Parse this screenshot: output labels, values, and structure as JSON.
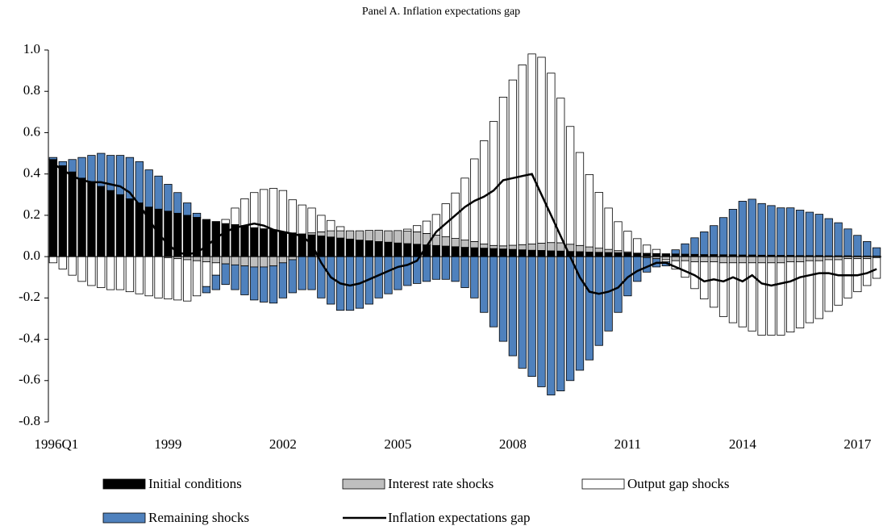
{
  "chart_data": {
    "type": "bar",
    "stacked": true,
    "title": "Panel A. Inflation expectations gap",
    "categories": [
      "1996Q1",
      null,
      null,
      null,
      null,
      null,
      null,
      null,
      null,
      null,
      null,
      null,
      "1999",
      null,
      null,
      null,
      null,
      null,
      null,
      null,
      null,
      null,
      null,
      null,
      "2002",
      null,
      null,
      null,
      null,
      null,
      null,
      null,
      null,
      null,
      null,
      null,
      "2005",
      null,
      null,
      null,
      null,
      null,
      null,
      null,
      null,
      null,
      null,
      null,
      "2008",
      null,
      null,
      null,
      null,
      null,
      null,
      null,
      null,
      null,
      null,
      null,
      "2011",
      null,
      null,
      null,
      null,
      null,
      null,
      null,
      null,
      null,
      null,
      null,
      "2014",
      null,
      null,
      null,
      null,
      null,
      null,
      null,
      null,
      null,
      null,
      null,
      "2017",
      null,
      null
    ],
    "ylim": [
      -0.8,
      1.0
    ],
    "yticks": [
      -0.8,
      -0.6,
      -0.4,
      -0.2,
      {
        "value": 0,
        "label": "0.0"
      },
      0.2,
      0.4,
      0.6,
      0.8,
      {
        "value": 1,
        "label": "1.0"
      }
    ],
    "series": [
      {
        "name": "Initial conditions",
        "color": "#000000",
        "values": [
          0.47,
          0.44,
          0.41,
          0.38,
          0.36,
          0.34,
          0.32,
          0.3,
          0.28,
          0.26,
          0.24,
          0.23,
          0.22,
          0.21,
          0.2,
          0.19,
          0.18,
          0.17,
          0.16,
          0.155,
          0.15,
          0.14,
          0.135,
          0.13,
          0.12,
          0.115,
          0.11,
          0.105,
          0.1,
          0.095,
          0.09,
          0.085,
          0.08,
          0.077,
          0.073,
          0.07,
          0.066,
          0.063,
          0.06,
          0.057,
          0.054,
          0.051,
          0.048,
          0.045,
          0.043,
          0.041,
          0.039,
          0.037,
          0.035,
          0.033,
          0.031,
          0.03,
          0.028,
          0.027,
          0.025,
          0.024,
          0.022,
          0.021,
          0.02,
          0.019,
          0.018,
          0.017,
          0.016,
          0.015,
          0.014,
          0.013,
          0.012,
          0.011,
          0.01,
          0.01,
          0.009,
          0.009,
          0.008,
          0.008,
          0.007,
          0.007,
          0.006,
          0.006,
          0.005,
          0.005,
          0.005,
          0.004,
          0.004,
          0.004,
          0.003,
          0.003,
          0.003
        ]
      },
      {
        "name": "Interest rate shocks",
        "color": "#bfbfbf",
        "values": [
          0,
          0,
          0,
          0,
          0,
          0,
          0,
          0,
          0,
          0,
          0,
          0,
          -0.005,
          -0.01,
          -0.015,
          -0.02,
          -0.025,
          -0.03,
          -0.035,
          -0.04,
          -0.045,
          -0.05,
          -0.05,
          -0.045,
          -0.03,
          -0.015,
          0,
          0.01,
          0.02,
          0.03,
          0.035,
          0.04,
          0.045,
          0.05,
          0.055,
          0.055,
          0.06,
          0.06,
          0.06,
          0.055,
          0.05,
          0.045,
          0.04,
          0.035,
          0.03,
          0.02,
          0.015,
          0.015,
          0.02,
          0.025,
          0.03,
          0.035,
          0.04,
          0.04,
          0.035,
          0.03,
          0.025,
          0.02,
          0.015,
          0.01,
          0.005,
          0,
          -0.005,
          -0.01,
          -0.015,
          -0.02,
          -0.02,
          -0.025,
          -0.025,
          -0.025,
          -0.03,
          -0.03,
          -0.03,
          -0.03,
          -0.03,
          -0.03,
          -0.03,
          -0.025,
          -0.025,
          -0.02,
          -0.02,
          -0.015,
          -0.015,
          -0.01,
          -0.01,
          -0.01,
          -0.005
        ]
      },
      {
        "name": "Output gap shocks",
        "color": "#ffffff",
        "values": [
          -0.03,
          -0.06,
          -0.09,
          -0.12,
          -0.14,
          -0.15,
          -0.16,
          -0.16,
          -0.17,
          -0.18,
          -0.19,
          -0.2,
          -0.2,
          -0.2,
          -0.2,
          -0.17,
          -0.12,
          -0.06,
          0.02,
          0.08,
          0.13,
          0.17,
          0.19,
          0.2,
          0.2,
          0.16,
          0.14,
          0.12,
          0.08,
          0.05,
          0.02,
          0,
          0,
          0,
          0,
          0,
          0,
          0.01,
          0.03,
          0.06,
          0.1,
          0.16,
          0.22,
          0.3,
          0.4,
          0.5,
          0.6,
          0.72,
          0.8,
          0.87,
          0.92,
          0.9,
          0.82,
          0.7,
          0.57,
          0.45,
          0.35,
          0.27,
          0.2,
          0.14,
          0.1,
          0.07,
          0.04,
          0.02,
          -0.01,
          -0.04,
          -0.08,
          -0.13,
          -0.18,
          -0.22,
          -0.26,
          -0.29,
          -0.31,
          -0.33,
          -0.35,
          -0.35,
          -0.35,
          -0.34,
          -0.32,
          -0.3,
          -0.28,
          -0.25,
          -0.22,
          -0.19,
          -0.16,
          -0.13,
          -0.1
        ]
      },
      {
        "name": "Remaining shocks",
        "color": "#4f81bd",
        "values": [
          0.01,
          0.02,
          0.06,
          0.1,
          0.13,
          0.16,
          0.17,
          0.19,
          0.2,
          0.2,
          0.18,
          0.16,
          0.13,
          0.1,
          0.06,
          0.02,
          -0.03,
          -0.07,
          -0.1,
          -0.12,
          -0.14,
          -0.16,
          -0.17,
          -0.18,
          -0.17,
          -0.16,
          -0.16,
          -0.16,
          -0.2,
          -0.23,
          -0.26,
          -0.26,
          -0.25,
          -0.23,
          -0.2,
          -0.18,
          -0.16,
          -0.14,
          -0.13,
          -0.12,
          -0.11,
          -0.11,
          -0.12,
          -0.15,
          -0.2,
          -0.27,
          -0.34,
          -0.41,
          -0.48,
          -0.54,
          -0.58,
          -0.63,
          -0.67,
          -0.65,
          -0.6,
          -0.55,
          -0.5,
          -0.43,
          -0.36,
          -0.27,
          -0.19,
          -0.12,
          -0.07,
          -0.04,
          -0.02,
          0.02,
          0.05,
          0.08,
          0.11,
          0.14,
          0.18,
          0.22,
          0.26,
          0.27,
          0.25,
          0.24,
          0.23,
          0.23,
          0.22,
          0.21,
          0.2,
          0.18,
          0.16,
          0.13,
          0.1,
          0.07,
          0.04
        ]
      },
      {
        "name": "Inflation expectations gap",
        "type": "line",
        "color": "#000000",
        "values": [
          0.45,
          0.42,
          0.39,
          0.37,
          0.36,
          0.36,
          0.35,
          0.34,
          0.31,
          0.25,
          0.18,
          0.11,
          0.06,
          0.02,
          0.01,
          0.02,
          0.05,
          0.09,
          0.12,
          0.14,
          0.15,
          0.16,
          0.15,
          0.13,
          0.12,
          0.11,
          0.1,
          0.06,
          -0.03,
          -0.1,
          -0.13,
          -0.14,
          -0.13,
          -0.11,
          -0.09,
          -0.07,
          -0.05,
          -0.04,
          -0.02,
          0.05,
          0.12,
          0.16,
          0.2,
          0.24,
          0.27,
          0.29,
          0.32,
          0.37,
          0.38,
          0.39,
          0.4,
          0.3,
          0.2,
          0.1,
          0.0,
          -0.1,
          -0.17,
          -0.18,
          -0.17,
          -0.15,
          -0.1,
          -0.07,
          -0.05,
          -0.03,
          -0.03,
          -0.05,
          -0.07,
          -0.09,
          -0.12,
          -0.11,
          -0.12,
          -0.1,
          -0.12,
          -0.09,
          -0.13,
          -0.14,
          -0.13,
          -0.12,
          -0.1,
          -0.09,
          -0.08,
          -0.08,
          -0.09,
          -0.09,
          -0.09,
          -0.08,
          -0.06
        ]
      }
    ]
  }
}
